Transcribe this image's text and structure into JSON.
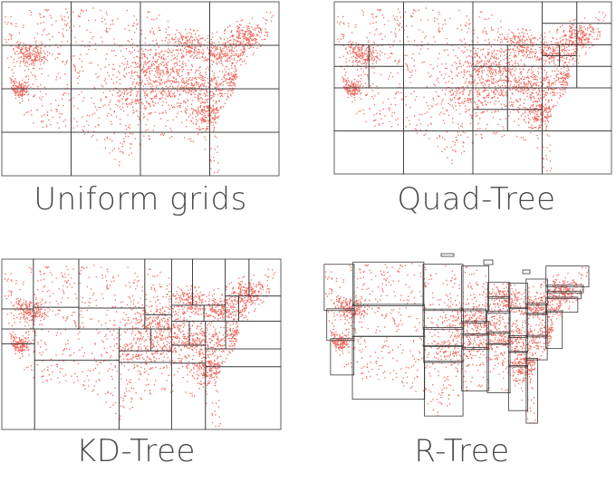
{
  "figure": {
    "panels": [
      {
        "id": "uniform-grids",
        "caption": "Uniform grids"
      },
      {
        "id": "quad-tree",
        "caption": "Quad-Tree"
      },
      {
        "id": "kd-tree",
        "caption": "KD-Tree"
      },
      {
        "id": "r-tree",
        "caption": "R-Tree"
      }
    ]
  },
  "colors": {
    "points": "#ef6a5f",
    "partition_lines": "#3a3a3a",
    "caption_text": "#4a4a4a"
  }
}
